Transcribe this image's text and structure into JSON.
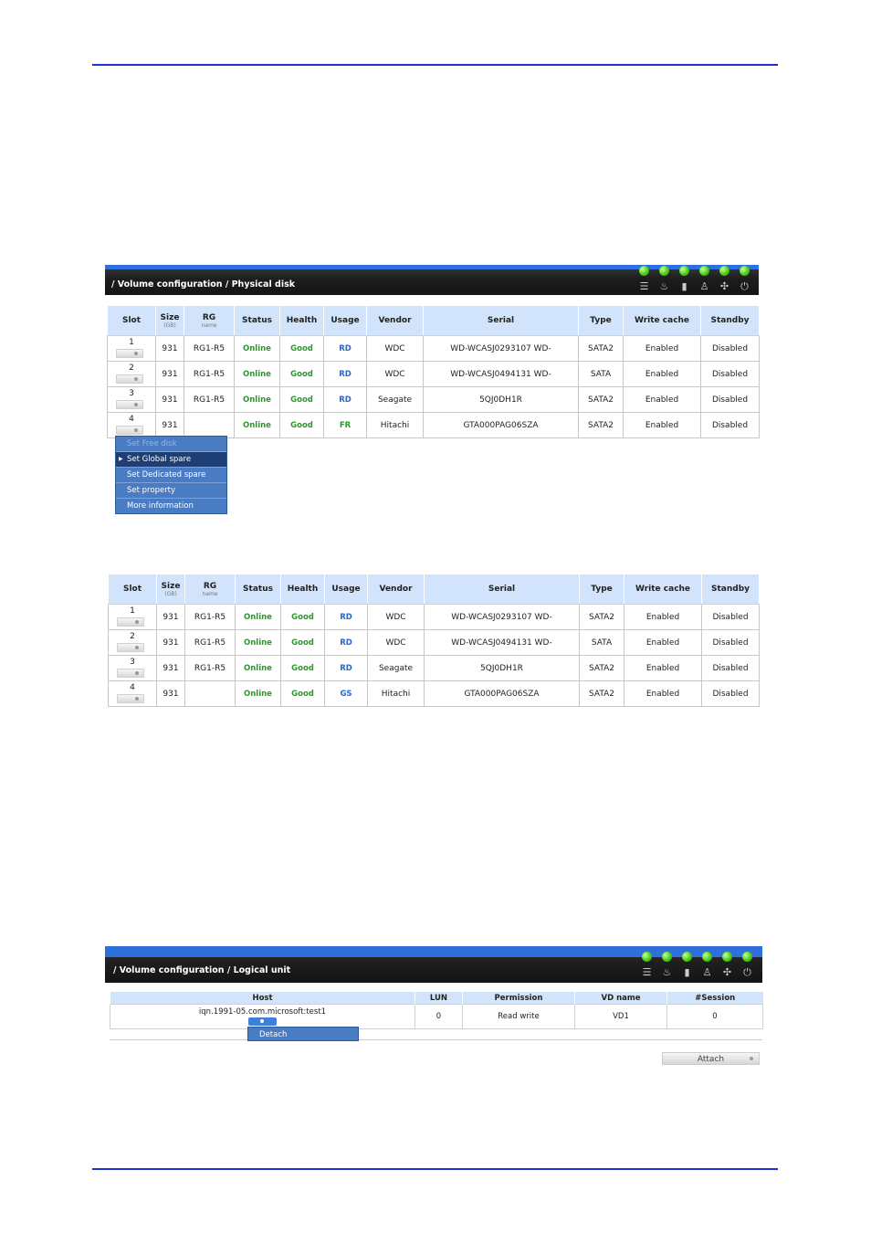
{
  "panel1": {
    "breadcrumb": "/ Volume configuration / Physical disk",
    "headers": {
      "slot": "Slot",
      "size": "Size",
      "size_unit": "(GB)",
      "rg": "RG",
      "rg_sub": "name",
      "status": "Status",
      "health": "Health",
      "usage": "Usage",
      "vendor": "Vendor",
      "serial": "Serial",
      "type": "Type",
      "write_cache": "Write cache",
      "standby": "Standby"
    },
    "rows": [
      {
        "slot": "1",
        "size": "931",
        "rg": "RG1-R5",
        "status": "Online",
        "health": "Good",
        "usage": "RD",
        "vendor": "WDC",
        "serial": "WD-WCASJ0293107 WD-",
        "type": "SATA2",
        "write_cache": "Enabled",
        "standby": "Disabled"
      },
      {
        "slot": "2",
        "size": "931",
        "rg": "RG1-R5",
        "status": "Online",
        "health": "Good",
        "usage": "RD",
        "vendor": "WDC",
        "serial": "WD-WCASJ0494131 WD-",
        "type": "SATA",
        "write_cache": "Enabled",
        "standby": "Disabled"
      },
      {
        "slot": "3",
        "size": "931",
        "rg": "RG1-R5",
        "status": "Online",
        "health": "Good",
        "usage": "RD",
        "vendor": "Seagate",
        "serial": "5QJ0DH1R",
        "type": "SATA2",
        "write_cache": "Enabled",
        "standby": "Disabled"
      },
      {
        "slot": "4",
        "size": "931",
        "rg": "",
        "status": "Online",
        "health": "Good",
        "usage": "FR",
        "vendor": "Hitachi",
        "serial": "GTA000PAG06SZA",
        "type": "SATA2",
        "write_cache": "Enabled",
        "standby": "Disabled"
      }
    ],
    "context_menu": [
      {
        "label": "Set Free disk",
        "state": "disabled"
      },
      {
        "label": "Set Global spare",
        "state": "active"
      },
      {
        "label": "Set Dedicated spare",
        "state": "normal"
      },
      {
        "label": "Set property",
        "state": "normal"
      },
      {
        "label": "More information",
        "state": "normal"
      }
    ]
  },
  "panel2": {
    "rows": [
      {
        "slot": "1",
        "size": "931",
        "rg": "RG1-R5",
        "status": "Online",
        "health": "Good",
        "usage": "RD",
        "vendor": "WDC",
        "serial": "WD-WCASJ0293107 WD-",
        "type": "SATA2",
        "write_cache": "Enabled",
        "standby": "Disabled"
      },
      {
        "slot": "2",
        "size": "931",
        "rg": "RG1-R5",
        "status": "Online",
        "health": "Good",
        "usage": "RD",
        "vendor": "WDC",
        "serial": "WD-WCASJ0494131 WD-",
        "type": "SATA",
        "write_cache": "Enabled",
        "standby": "Disabled"
      },
      {
        "slot": "3",
        "size": "931",
        "rg": "RG1-R5",
        "status": "Online",
        "health": "Good",
        "usage": "RD",
        "vendor": "Seagate",
        "serial": "5QJ0DH1R",
        "type": "SATA2",
        "write_cache": "Enabled",
        "standby": "Disabled"
      },
      {
        "slot": "4",
        "size": "931",
        "rg": "",
        "status": "Online",
        "health": "Good",
        "usage": "GS",
        "vendor": "Hitachi",
        "serial": "GTA000PAG06SZA",
        "type": "SATA2",
        "write_cache": "Enabled",
        "standby": "Disabled"
      }
    ]
  },
  "panel3": {
    "breadcrumb": "/ Volume configuration / Logical unit",
    "headers": {
      "host": "Host",
      "lun": "LUN",
      "permission": "Permission",
      "vd_name": "VD name",
      "session": "#Session"
    },
    "row": {
      "host": "iqn.1991-05.com.microsoft:test1",
      "lun": "0",
      "permission": "Read write",
      "vd_name": "VD1",
      "session": "0"
    },
    "context_menu": "Detach",
    "attach_label": "Attach"
  },
  "status_icons": [
    "disk-icon",
    "temperature-icon",
    "battery-icon",
    "user-icon",
    "fan-icon",
    "power-icon"
  ],
  "colors": {
    "rule": "#1e2fd6",
    "header_bg": "#d2e4fb",
    "online_green": "#2a9a2a",
    "usage_blue": "#2c66c8",
    "menu_blue": "#4a7cc4",
    "led_green": "#4ccb1a"
  }
}
